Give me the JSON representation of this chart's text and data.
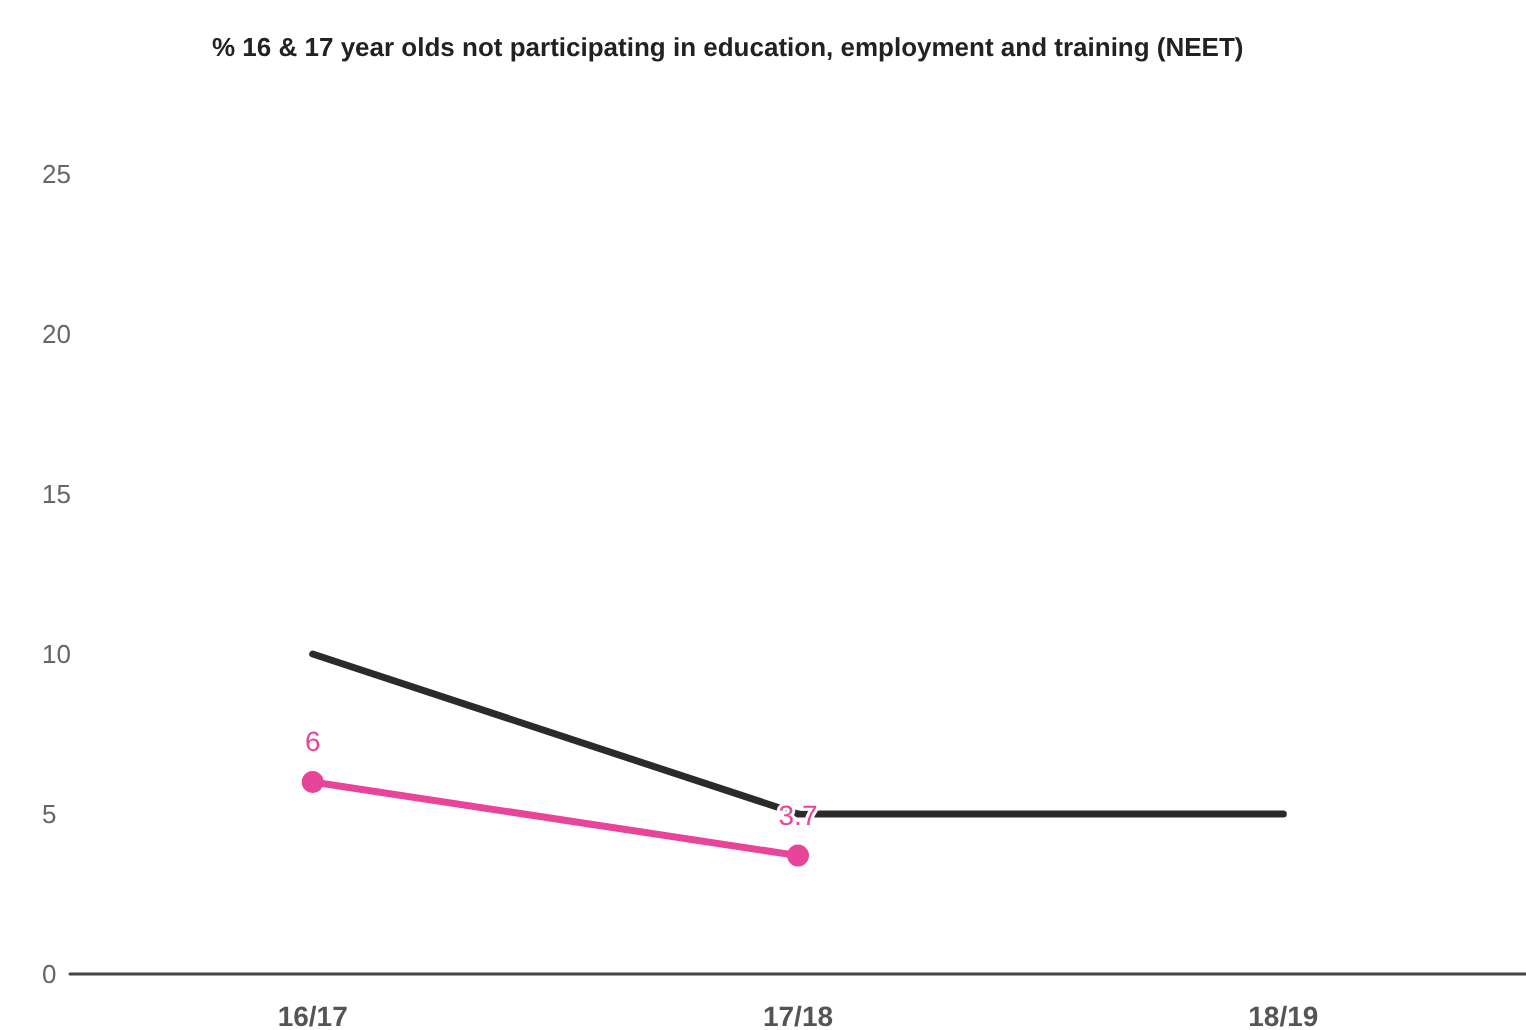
{
  "chart_data": {
    "type": "line",
    "title": "% 16 & 17 year olds not participating in education, employment and training (NEET)",
    "categories": [
      "16/17",
      "17/18",
      "18/19"
    ],
    "series": [
      {
        "color": "#2b2b2b",
        "values": [
          10,
          5,
          5
        ],
        "marker": "none"
      },
      {
        "color": "#e8449a",
        "values": [
          6,
          3.7,
          null
        ],
        "marker": "circle",
        "value_labels": [
          "6",
          "3.7",
          null
        ]
      }
    ],
    "ylim": [
      0,
      25
    ],
    "yticks": [
      0,
      5,
      10,
      15,
      20,
      25
    ],
    "grid": false
  }
}
